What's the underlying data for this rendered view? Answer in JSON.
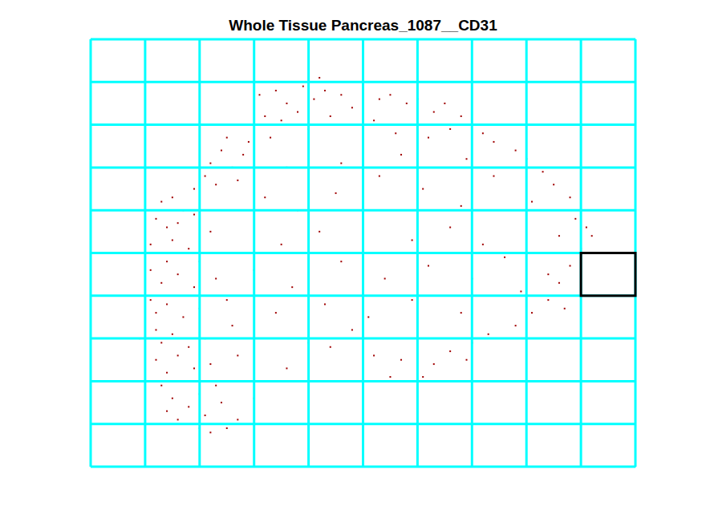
{
  "chart_data": {
    "type": "scatter",
    "title": "Whole Tissue Pancreas_1087__CD31",
    "color": "#a00000",
    "marker": "point",
    "grid": true,
    "tick_labels": false,
    "xlim": [
      0,
      10
    ],
    "ylim": [
      0,
      10
    ],
    "xticks": [
      0,
      1,
      2,
      3,
      4,
      5,
      6,
      7,
      8,
      9,
      10
    ],
    "yticks": [
      0,
      1,
      2,
      3,
      4,
      5,
      6,
      7,
      8,
      9,
      10
    ],
    "selected_cell": {
      "x": [
        9,
        10
      ],
      "y": [
        4,
        5
      ]
    },
    "x": [
      3.1,
      3.4,
      3.6,
      3.9,
      4.1,
      4.3,
      4.6,
      4.8,
      5.0,
      5.3,
      5.5,
      5.8,
      6.0,
      6.3,
      6.5,
      6.8,
      7.0,
      7.2,
      3.2,
      3.5,
      3.8,
      4.4,
      5.2,
      5.9,
      6.6,
      7.4,
      4.2,
      3.0,
      2.9,
      3.3,
      4.0,
      5.6,
      6.2,
      7.8,
      8.0,
      2.2,
      2.4,
      2.6,
      2.8,
      2.1,
      2.3,
      2.7,
      1.9,
      2.5,
      1.3,
      1.5,
      1.7,
      1.2,
      1.4,
      1.6,
      1.9,
      2.2,
      1.1,
      1.3,
      1.5,
      1.8,
      2.0,
      2.4,
      1.1,
      1.3,
      1.4,
      1.6,
      1.9,
      2.3,
      1.1,
      1.2,
      1.4,
      1.7,
      2.0,
      2.5,
      1.2,
      1.3,
      1.5,
      1.8,
      2.1,
      2.6,
      1.2,
      1.4,
      1.6,
      1.9,
      2.2,
      2.7,
      1.3,
      1.5,
      1.7,
      2.0,
      2.3,
      1.4,
      1.6,
      1.8,
      2.1,
      2.4,
      2.0,
      2.2,
      2.5,
      2.7,
      0.9,
      1.0,
      3.0,
      3.3,
      3.6,
      4.0,
      4.4,
      4.8,
      5.2,
      5.5,
      5.8,
      6.1,
      6.3,
      5.7,
      6.6,
      7.0,
      7.3,
      6.9,
      7.8,
      8.1,
      8.4,
      8.6,
      8.8,
      9.0,
      9.1,
      9.0,
      8.8,
      8.5,
      8.3,
      8.6,
      8.2,
      8.4,
      7.9,
      8.7,
      9.2,
      8.9,
      8.1,
      3.2,
      3.8,
      4.5,
      5.3,
      6.1,
      6.8,
      7.4,
      3.5,
      4.2,
      5.0,
      5.9,
      6.6,
      7.2,
      3.0,
      3.7,
      4.6,
      5.4,
      6.2,
      7.0,
      7.6,
      3.4,
      4.3,
      5.1,
      5.9,
      6.8,
      4.6,
      5.7,
      6.9,
      3.6
    ],
    "values": [
      8.7,
      8.8,
      8.5,
      8.9,
      8.6,
      8.8,
      8.7,
      8.4,
      8.8,
      8.6,
      8.7,
      8.5,
      8.6,
      8.3,
      8.5,
      8.2,
      8.0,
      7.8,
      8.2,
      8.1,
      8.3,
      8.2,
      8.1,
      8.0,
      7.9,
      7.6,
      9.1,
      8.0,
      7.6,
      7.7,
      7.9,
      7.8,
      7.7,
      7.4,
      7.2,
      7.1,
      7.4,
      7.0,
      7.3,
      6.8,
      6.6,
      6.7,
      6.5,
      7.7,
      6.2,
      6.3,
      6.0,
      5.8,
      5.6,
      5.7,
      5.9,
      5.5,
      5.2,
      5.0,
      5.3,
      5.1,
      4.8,
      5.0,
      4.6,
      4.3,
      4.8,
      4.5,
      4.2,
      4.4,
      3.9,
      3.6,
      3.8,
      3.5,
      3.7,
      3.9,
      3.2,
      2.9,
      3.1,
      2.8,
      3.0,
      3.3,
      2.5,
      2.2,
      2.6,
      2.3,
      2.4,
      2.6,
      1.9,
      1.6,
      2.0,
      1.7,
      1.9,
      1.3,
      1.1,
      1.4,
      1.2,
      1.5,
      0.9,
      0.8,
      0.9,
      1.1,
      3.0,
      4.0,
      1.6,
      2.0,
      2.3,
      2.9,
      2.8,
      3.2,
      2.6,
      2.1,
      2.0,
      2.1,
      2.4,
      2.5,
      2.7,
      2.9,
      3.1,
      2.5,
      3.3,
      3.6,
      3.9,
      4.3,
      4.7,
      5.1,
      5.6,
      6.0,
      6.3,
      6.6,
      6.9,
      5.4,
      5.0,
      4.5,
      4.1,
      3.7,
      5.4,
      5.8,
      6.2,
      6.3,
      6.0,
      6.4,
      6.8,
      6.5,
      6.1,
      6.8,
      5.2,
      5.5,
      5.8,
      5.3,
      5.6,
      5.2,
      4.6,
      4.2,
      4.8,
      4.4,
      4.7,
      4.4,
      4.9,
      3.6,
      3.8,
      3.5,
      3.9,
      3.6,
      7.1,
      7.3,
      7.2,
      7.0
    ]
  }
}
